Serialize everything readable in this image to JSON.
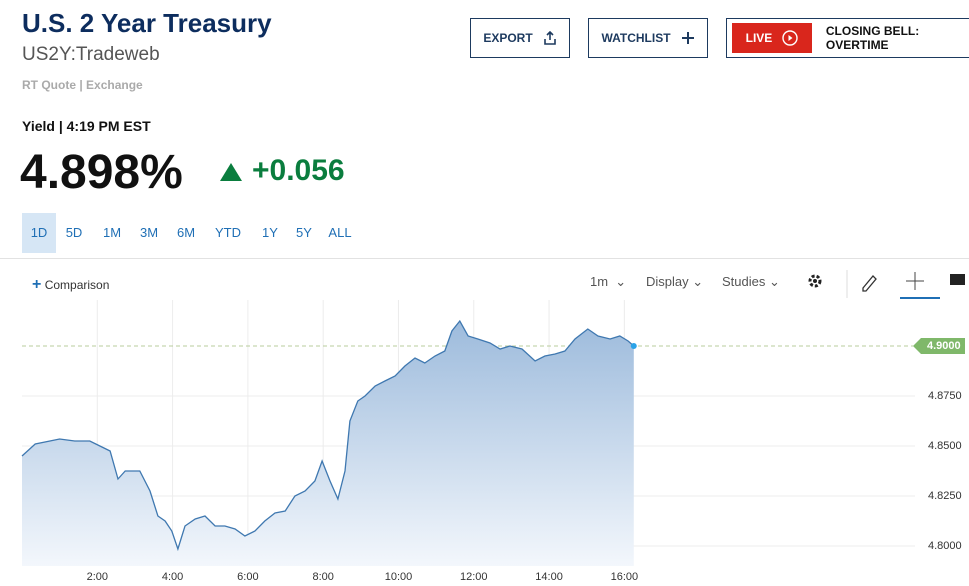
{
  "header": {
    "title": "U.S. 2 Year Treasury",
    "symbol": "US2Y:Tradeweb",
    "quote_source": "RT Quote | Exchange"
  },
  "buttons": [
    "EXPORT",
    "WATCHLIST"
  ],
  "live": {
    "badge": "LIVE",
    "text": "CLOSING BELL: OVERTIME"
  },
  "quote": {
    "label": "Yield | 4:19 PM EST",
    "price": "4.898%",
    "change": "+0.056"
  },
  "ranges": [
    "1D",
    "5D",
    "1M",
    "3M",
    "6M",
    "YTD",
    "1Y",
    "5Y",
    "ALL"
  ],
  "toolbar": {
    "comparison": "Comparison",
    "interval": "1m",
    "display": "Display",
    "studies": "Studies"
  },
  "chart_data": {
    "type": "area",
    "color": "#3f78b0",
    "x": [
      0,
      0.35,
      0.74,
      1.0,
      1.4,
      1.8,
      2.07,
      2.34,
      2.55,
      2.74,
      3.13,
      3.4,
      3.61,
      3.8,
      3.98,
      4.14,
      4.33,
      4.6,
      4.86,
      5.13,
      5.39,
      5.66,
      5.92,
      6.19,
      6.45,
      6.72,
      6.99,
      7.25,
      7.52,
      7.78,
      7.97,
      8.18,
      8.39,
      8.58,
      8.71,
      8.92,
      9.11,
      9.38,
      9.64,
      9.91,
      10.17,
      10.44,
      10.7,
      10.97,
      11.23,
      11.42,
      11.63,
      11.85,
      12.11,
      12.43,
      12.7,
      12.96,
      13.28,
      13.63,
      13.89,
      14.16,
      14.42,
      14.69,
      15.03,
      15.3,
      15.62,
      15.88,
      16.1,
      16.25
    ],
    "values": [
      4.845,
      4.851,
      4.8525,
      4.8535,
      4.8525,
      4.8525,
      4.85,
      4.8475,
      4.8335,
      4.8375,
      4.8375,
      4.8275,
      4.815,
      4.8125,
      4.8075,
      4.7985,
      4.81,
      4.8135,
      4.815,
      4.81,
      4.81,
      4.8085,
      4.805,
      4.8075,
      4.8125,
      4.8165,
      4.8175,
      4.825,
      4.8275,
      4.8325,
      4.8425,
      4.8325,
      4.8235,
      4.8375,
      4.8625,
      4.8725,
      4.875,
      4.88,
      4.8825,
      4.885,
      4.89,
      4.894,
      4.8915,
      4.895,
      4.8975,
      4.9075,
      4.9125,
      4.905,
      4.9035,
      4.9015,
      4.8985,
      4.9,
      4.8985,
      4.8925,
      4.895,
      4.896,
      4.8975,
      4.9035,
      4.9085,
      4.905,
      4.9035,
      4.905,
      4.9025,
      4.9
    ],
    "xlim": [
      0,
      23.72
    ],
    "ylim": [
      4.79,
      4.923
    ],
    "xticks": [
      {
        "value": 2,
        "label": "2:00"
      },
      {
        "value": 4,
        "label": "4:00"
      },
      {
        "value": 6,
        "label": "6:00"
      },
      {
        "value": 8,
        "label": "8:00"
      },
      {
        "value": 10,
        "label": "10:00"
      },
      {
        "value": 12,
        "label": "12:00"
      },
      {
        "value": 14,
        "label": "14:00"
      },
      {
        "value": 16,
        "label": "16:00"
      }
    ],
    "yticks": [
      {
        "value": 4.8,
        "label": "4.8000"
      },
      {
        "value": 4.825,
        "label": "4.8250"
      },
      {
        "value": 4.85,
        "label": "4.8500"
      },
      {
        "value": 4.875,
        "label": "4.8750"
      }
    ],
    "last": {
      "value": 4.9,
      "label": "4.9000"
    },
    "grid": true
  }
}
